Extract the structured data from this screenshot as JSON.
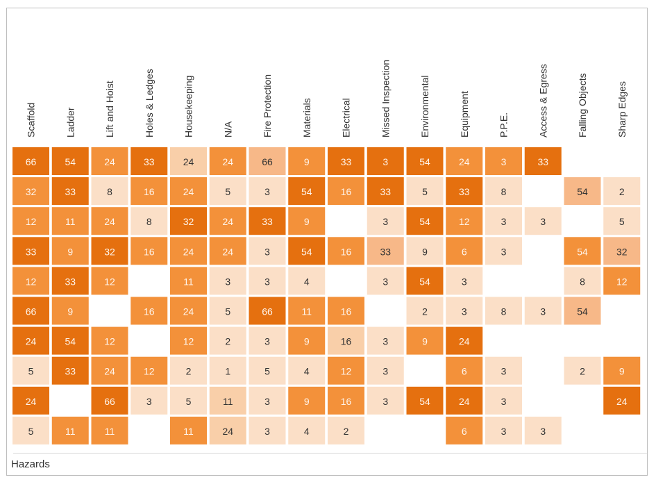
{
  "chart_data": {
    "type": "heatmap",
    "columns": [
      "Scaffold",
      "Ladder",
      "Lift and Hoist",
      "Holes & Ledges",
      "Housekeeping",
      "N/A",
      "Fire Protection",
      "Materials",
      "Electrical",
      "Missed Inspection",
      "Environmental",
      "Equipment",
      "P.P.E.",
      "Access & Egress",
      "Falling Objects",
      "Sharp Edges"
    ],
    "rows": [
      [
        66,
        54,
        24,
        33,
        24,
        24,
        66,
        9,
        33,
        3,
        54,
        24,
        3,
        33,
        null,
        null
      ],
      [
        32,
        33,
        8,
        16,
        24,
        5,
        3,
        54,
        16,
        33,
        5,
        33,
        8,
        null,
        54,
        2
      ],
      [
        12,
        11,
        24,
        8,
        32,
        24,
        33,
        9,
        null,
        3,
        54,
        12,
        3,
        3,
        null,
        5
      ],
      [
        33,
        9,
        32,
        16,
        24,
        24,
        3,
        54,
        16,
        33,
        9,
        6,
        3,
        null,
        54,
        32
      ],
      [
        12,
        33,
        12,
        null,
        11,
        3,
        3,
        4,
        null,
        3,
        54,
        3,
        null,
        null,
        8,
        12
      ],
      [
        66,
        9,
        null,
        16,
        24,
        5,
        66,
        11,
        16,
        null,
        2,
        3,
        8,
        3,
        54,
        null
      ],
      [
        24,
        54,
        12,
        null,
        12,
        2,
        3,
        9,
        16,
        3,
        9,
        24,
        null,
        null,
        null,
        null
      ],
      [
        5,
        33,
        24,
        12,
        2,
        1,
        5,
        4,
        12,
        3,
        null,
        6,
        3,
        null,
        2,
        9
      ],
      [
        24,
        null,
        66,
        3,
        5,
        11,
        3,
        9,
        16,
        3,
        54,
        24,
        3,
        null,
        null,
        24
      ],
      [
        5,
        11,
        11,
        null,
        11,
        24,
        3,
        4,
        2,
        null,
        null,
        6,
        3,
        3,
        null,
        null
      ]
    ],
    "levels": [
      [
        66,
        66,
        54,
        66,
        null,
        54,
        null,
        54,
        66,
        66,
        66,
        54,
        54,
        66,
        null,
        null
      ],
      [
        54,
        66,
        null,
        54,
        54,
        null,
        null,
        66,
        54,
        66,
        null,
        66,
        null,
        null,
        null,
        null
      ],
      [
        54,
        54,
        54,
        null,
        66,
        54,
        66,
        54,
        null,
        null,
        66,
        54,
        null,
        null,
        null,
        null
      ],
      [
        66,
        54,
        66,
        54,
        54,
        54,
        null,
        66,
        54,
        null,
        null,
        54,
        null,
        null,
        54,
        null
      ],
      [
        54,
        66,
        54,
        null,
        54,
        null,
        null,
        null,
        null,
        null,
        66,
        null,
        null,
        null,
        null,
        54
      ],
      [
        66,
        54,
        null,
        54,
        54,
        null,
        66,
        54,
        54,
        null,
        null,
        null,
        null,
        null,
        null,
        null
      ],
      [
        66,
        66,
        54,
        null,
        54,
        null,
        null,
        54,
        null,
        null,
        54,
        66,
        null,
        null,
        null,
        null
      ],
      [
        null,
        66,
        54,
        54,
        null,
        null,
        null,
        null,
        54,
        null,
        null,
        54,
        null,
        null,
        null,
        54
      ],
      [
        66,
        null,
        66,
        null,
        null,
        null,
        null,
        54,
        54,
        null,
        66,
        66,
        null,
        null,
        null,
        66
      ],
      [
        null,
        54,
        54,
        null,
        54,
        null,
        null,
        null,
        null,
        null,
        null,
        54,
        null,
        null,
        null,
        null
      ]
    ],
    "title": "",
    "xlabel": "",
    "ylabel": "",
    "colors": {
      "dark": "#e5700f",
      "mid": "#f3913a",
      "light_strong": "#f7b888",
      "light": "#f9cfa9",
      "pale": "#fbdfc7",
      "text_dark": "#333333",
      "text_light": "#fff4ea"
    }
  },
  "footer": {
    "label": "Hazards"
  }
}
